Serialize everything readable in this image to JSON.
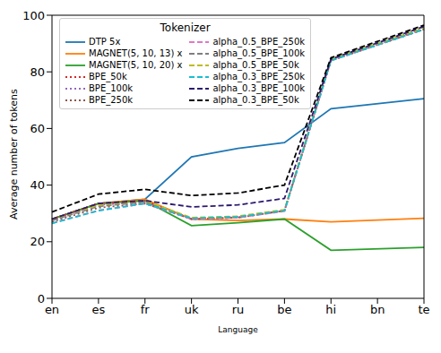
{
  "chart_data": {
    "type": "line",
    "x_label": "Language",
    "y_label": "Average number of tokens",
    "legend_title": "Tokenizer",
    "legend": "upper left",
    "grid": false,
    "categories": [
      "en",
      "es",
      "fr",
      "uk",
      "ru",
      "be",
      "hi",
      "bn",
      "te"
    ],
    "ylim": [
      0,
      100
    ],
    "yticks": [
      0,
      20,
      40,
      60,
      80,
      100
    ],
    "series": [
      {
        "name": "DTP 5x",
        "color": "#1f77b4",
        "line_style": "solid",
        "values": [
          28,
          33.5,
          35,
          50,
          53,
          55,
          67,
          null,
          70.5
        ]
      },
      {
        "name": "MAGNET(5, 10, 13) x",
        "color": "#ff7f0e",
        "line_style": "solid",
        "values": [
          28,
          33.5,
          35,
          28,
          27.5,
          28,
          27,
          null,
          28.3
        ]
      },
      {
        "name": "MAGNET(5, 10, 20) x",
        "color": "#2ca02c",
        "line_style": "solid",
        "values": [
          28,
          33.5,
          34.5,
          25.7,
          26.7,
          28,
          17,
          null,
          18
        ]
      },
      {
        "name": "BPE_50k",
        "color": "#d62728",
        "line_style": "dotted",
        "values": [
          28,
          33.5,
          34.5,
          28,
          28.5,
          31,
          84,
          null,
          95.5
        ]
      },
      {
        "name": "BPE_100k",
        "color": "#9467bd",
        "line_style": "dotted",
        "values": [
          27.5,
          33,
          34,
          28,
          28.7,
          31,
          84,
          null,
          95
        ]
      },
      {
        "name": "BPE_250k",
        "color": "#8c564b",
        "line_style": "dotted",
        "values": [
          27,
          32,
          33.5,
          28,
          28.5,
          31,
          84,
          null,
          95
        ]
      },
      {
        "name": "alpha_0.5_BPE_250k",
        "color": "#e377c2",
        "line_style": "dashed",
        "values": [
          26.5,
          31,
          33.5,
          28,
          28.5,
          30.8,
          84,
          null,
          95
        ]
      },
      {
        "name": "alpha_0.5_BPE_100k",
        "color": "#7f7f7f",
        "line_style": "dashed",
        "values": [
          27.5,
          32.5,
          34,
          28.3,
          28.8,
          31,
          84.3,
          null,
          95.2
        ]
      },
      {
        "name": "alpha_0.5_BPE_50k",
        "color": "#bcbd22",
        "line_style": "dashed",
        "values": [
          28,
          33,
          34.5,
          28.5,
          29,
          31.3,
          84.5,
          null,
          95.5
        ]
      },
      {
        "name": "alpha_0.3_BPE_250k",
        "color": "#17becf",
        "line_style": "dashed",
        "values": [
          26.5,
          31,
          33.5,
          28.3,
          28.8,
          31,
          84,
          null,
          95
        ]
      },
      {
        "name": "alpha_0.3_BPE_100k",
        "color": "#2e1a6e",
        "line_style": "dashed",
        "values": [
          28,
          33.5,
          34.5,
          32.3,
          33,
          35.3,
          84.5,
          null,
          96
        ]
      },
      {
        "name": "alpha_0.3_BPE_50k",
        "color": "#000000",
        "line_style": "dashed",
        "values": [
          30.5,
          36.8,
          38.5,
          36.3,
          37.2,
          40,
          85,
          null,
          96.5
        ]
      }
    ]
  }
}
